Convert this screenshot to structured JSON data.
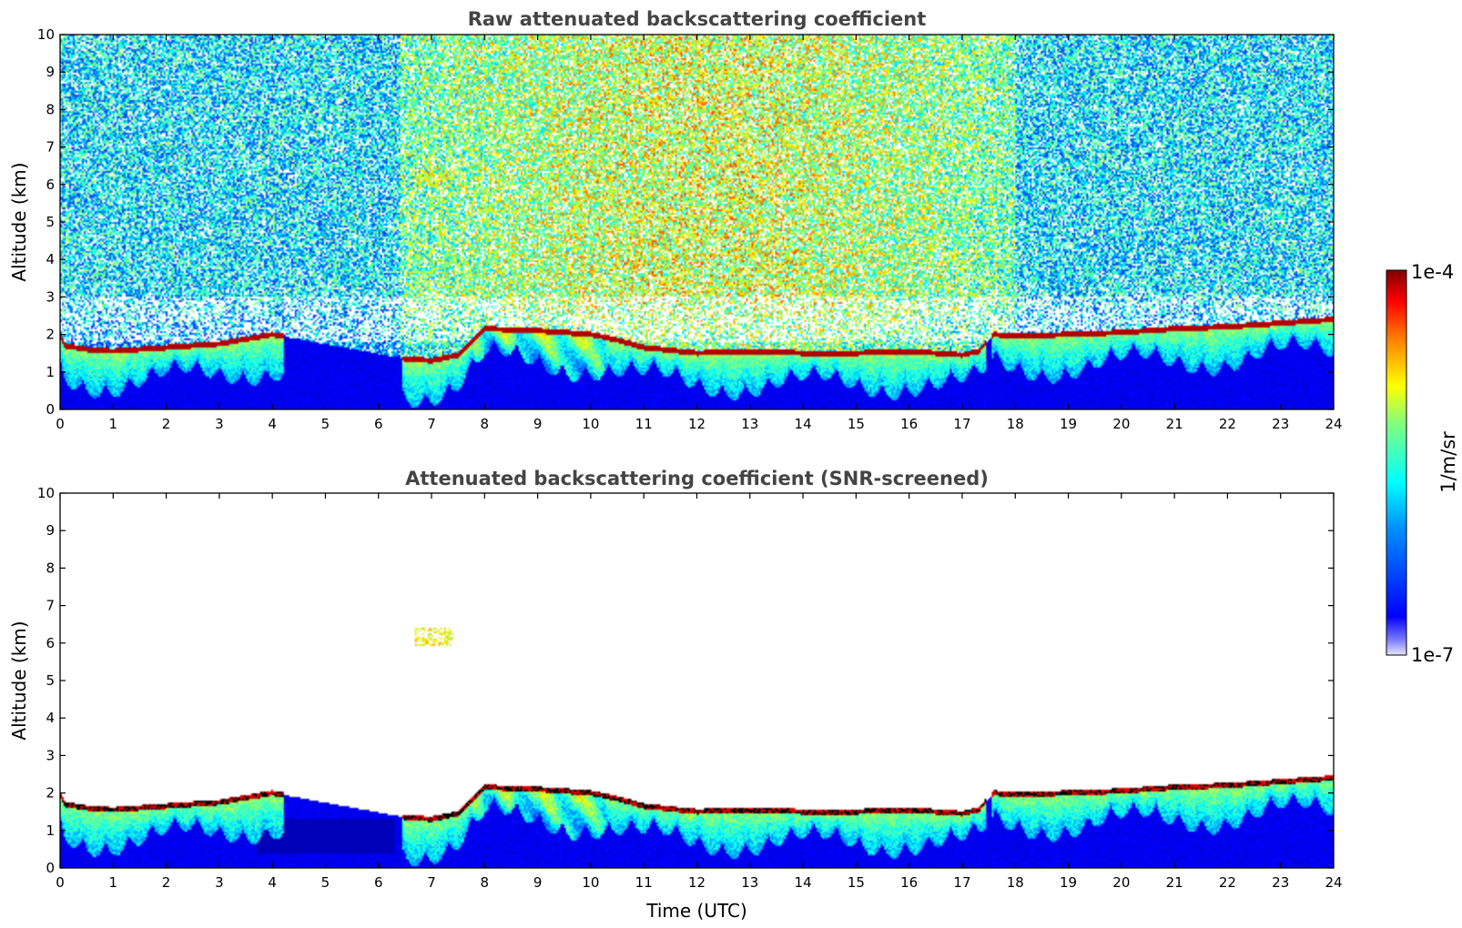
{
  "chart_data": [
    {
      "type": "heatmap",
      "title": "Raw attenuated backscattering coefficient",
      "xlabel": "",
      "ylabel": "Altitude (km)",
      "xlim": [
        0,
        24
      ],
      "ylim": [
        0,
        10
      ],
      "x_ticks": [
        "0",
        "1",
        "2",
        "3",
        "4",
        "5",
        "6",
        "7",
        "8",
        "9",
        "10",
        "11",
        "12",
        "13",
        "14",
        "15",
        "16",
        "17",
        "18",
        "19",
        "20",
        "21",
        "22",
        "23",
        "24"
      ],
      "y_ticks": [
        "0",
        "1",
        "2",
        "3",
        "4",
        "5",
        "6",
        "7",
        "8",
        "9",
        "10"
      ],
      "screened": false,
      "features": {
        "cloud_top_km": [
          [
            0.0,
            1.95
          ],
          [
            0.1,
            1.7
          ],
          [
            0.5,
            1.6
          ],
          [
            1.0,
            1.55
          ],
          [
            2.0,
            1.65
          ],
          [
            3.0,
            1.75
          ],
          [
            4.0,
            2.0
          ],
          [
            4.2,
            1.95
          ],
          [
            6.5,
            1.35
          ],
          [
            7.0,
            1.3
          ],
          [
            7.5,
            1.45
          ],
          [
            8.0,
            2.15
          ],
          [
            9.0,
            2.1
          ],
          [
            10.0,
            2.0
          ],
          [
            10.5,
            1.85
          ],
          [
            11.0,
            1.65
          ],
          [
            12.0,
            1.5
          ],
          [
            13.0,
            1.55
          ],
          [
            14.0,
            1.5
          ],
          [
            15.0,
            1.5
          ],
          [
            16.0,
            1.55
          ],
          [
            16.5,
            1.5
          ],
          [
            17.0,
            1.45
          ],
          [
            17.3,
            1.55
          ],
          [
            17.6,
            2.0
          ],
          [
            18.0,
            1.95
          ],
          [
            19.0,
            2.0
          ],
          [
            20.0,
            2.05
          ],
          [
            21.0,
            2.15
          ],
          [
            22.0,
            2.2
          ],
          [
            23.0,
            2.3
          ],
          [
            24.0,
            2.4
          ]
        ],
        "elevated_layer": {
          "x": [
            6.7,
            7.4
          ],
          "altitude_km": [
            5.9,
            6.4
          ]
        }
      }
    },
    {
      "type": "heatmap",
      "title": "Attenuated backscattering coefficient (SNR-screened)",
      "xlabel": "Time (UTC)",
      "ylabel": "Altitude (km)",
      "xlim": [
        0,
        24
      ],
      "ylim": [
        0,
        10
      ],
      "x_ticks": [
        "0",
        "1",
        "2",
        "3",
        "4",
        "5",
        "6",
        "7",
        "8",
        "9",
        "10",
        "11",
        "12",
        "13",
        "14",
        "15",
        "16",
        "17",
        "18",
        "19",
        "20",
        "21",
        "22",
        "23",
        "24"
      ],
      "y_ticks": [
        "0",
        "1",
        "2",
        "3",
        "4",
        "5",
        "6",
        "7",
        "8",
        "9",
        "10"
      ],
      "screened": true
    }
  ],
  "colorbar": {
    "label": "1/m/sr",
    "min_label": "1e-7",
    "max_label": "1e-4",
    "colormap": "jet"
  },
  "colors": {
    "title": "#444444",
    "colormap_stops": [
      "#ffffff",
      "#0000ff",
      "#00ffff",
      "#ffff00",
      "#ff0000",
      "#800000"
    ]
  }
}
